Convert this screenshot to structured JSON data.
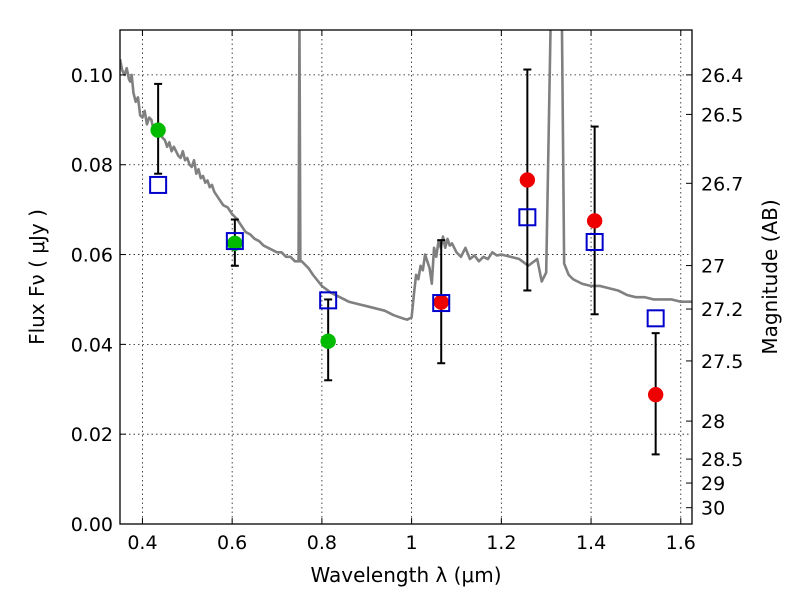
{
  "chart_data": {
    "type": "scatter",
    "title": "",
    "xlabel": "Wavelength  λ (μm)",
    "ylabel": "Flux  Fν  ( μJy )",
    "y2label": "Magnitude (AB)",
    "xlim": [
      0.35,
      1.625
    ],
    "ylim": [
      0.0,
      0.11
    ],
    "grid": true,
    "x_ticks": [
      0.4,
      0.6,
      0.8,
      1.0,
      1.2,
      1.4,
      1.6
    ],
    "x_tick_labels": [
      "0.4",
      "0.6",
      "0.8",
      "1",
      "1.2",
      "1.4",
      "1.6"
    ],
    "y_ticks": [
      0.0,
      0.02,
      0.04,
      0.06,
      0.08,
      0.1
    ],
    "y_tick_labels": [
      "0.00",
      "0.02",
      "0.04",
      "0.06",
      "0.08",
      "0.10"
    ],
    "y2_ticks": [
      {
        "label": "26.4",
        "mag": 26.4
      },
      {
        "label": "26.5",
        "mag": 26.5
      },
      {
        "label": "26.7",
        "mag": 26.7
      },
      {
        "label": "27",
        "mag": 27.0
      },
      {
        "label": "27.2",
        "mag": 27.2
      },
      {
        "label": "27.5",
        "mag": 27.5
      },
      {
        "label": "28",
        "mag": 28.0
      },
      {
        "label": "28.5",
        "mag": 28.5
      },
      {
        "label": "29",
        "mag": 29.0
      },
      {
        "label": "30",
        "mag": 30.0
      }
    ],
    "model_spectrum": {
      "color": "#808080",
      "x": [
        0.35,
        0.355,
        0.36,
        0.365,
        0.37,
        0.373,
        0.376,
        0.38,
        0.385,
        0.39,
        0.395,
        0.4,
        0.405,
        0.41,
        0.415,
        0.42,
        0.425,
        0.43,
        0.435,
        0.44,
        0.445,
        0.45,
        0.455,
        0.46,
        0.465,
        0.47,
        0.475,
        0.48,
        0.485,
        0.49,
        0.495,
        0.5,
        0.505,
        0.51,
        0.515,
        0.52,
        0.525,
        0.53,
        0.535,
        0.54,
        0.545,
        0.55,
        0.555,
        0.56,
        0.57,
        0.58,
        0.59,
        0.6,
        0.61,
        0.62,
        0.63,
        0.64,
        0.65,
        0.66,
        0.665,
        0.67,
        0.68,
        0.69,
        0.7,
        0.71,
        0.72,
        0.73,
        0.74,
        0.745,
        0.748,
        0.75,
        0.752,
        0.755,
        0.76,
        0.77,
        0.78,
        0.8,
        0.82,
        0.84,
        0.86,
        0.88,
        0.9,
        0.92,
        0.94,
        0.96,
        0.98,
        0.99,
        1.0,
        1.005,
        1.01,
        1.015,
        1.02,
        1.025,
        1.03,
        1.035,
        1.04,
        1.045,
        1.05,
        1.055,
        1.06,
        1.065,
        1.07,
        1.075,
        1.08,
        1.085,
        1.09,
        1.1,
        1.11,
        1.12,
        1.13,
        1.14,
        1.15,
        1.16,
        1.17,
        1.18,
        1.19,
        1.2,
        1.22,
        1.24,
        1.26,
        1.28,
        1.29,
        1.3,
        1.31,
        1.315,
        1.32,
        1.325,
        1.33,
        1.335,
        1.34,
        1.35,
        1.36,
        1.38,
        1.4,
        1.42,
        1.44,
        1.46,
        1.48,
        1.5,
        1.52,
        1.54,
        1.56,
        1.58,
        1.6,
        1.625
      ],
      "y": [
        0.1035,
        0.101,
        0.1,
        0.1015,
        0.099,
        0.0985,
        0.1,
        0.096,
        0.094,
        0.095,
        0.091,
        0.0905,
        0.092,
        0.089,
        0.0905,
        0.09,
        0.0875,
        0.089,
        0.086,
        0.087,
        0.086,
        0.0855,
        0.084,
        0.085,
        0.083,
        0.084,
        0.083,
        0.082,
        0.0815,
        0.083,
        0.081,
        0.0815,
        0.08,
        0.0795,
        0.081,
        0.078,
        0.079,
        0.077,
        0.0775,
        0.076,
        0.0765,
        0.075,
        0.0755,
        0.074,
        0.0725,
        0.071,
        0.0705,
        0.069,
        0.068,
        0.0665,
        0.065,
        0.0645,
        0.0635,
        0.063,
        0.0625,
        0.062,
        0.0615,
        0.061,
        0.0605,
        0.0605,
        0.0595,
        0.0595,
        0.0585,
        0.0585,
        0.0585,
        0.112,
        0.0585,
        0.0585,
        0.058,
        0.057,
        0.0555,
        0.053,
        0.0515,
        0.0505,
        0.0495,
        0.049,
        0.0485,
        0.048,
        0.0475,
        0.0465,
        0.0458,
        0.0455,
        0.046,
        0.051,
        0.0555,
        0.0545,
        0.0575,
        0.0565,
        0.06,
        0.0585,
        0.057,
        0.0535,
        0.0615,
        0.0595,
        0.063,
        0.0615,
        0.064,
        0.0615,
        0.0635,
        0.062,
        0.0625,
        0.0605,
        0.0595,
        0.0615,
        0.059,
        0.0598,
        0.0585,
        0.0595,
        0.059,
        0.0605,
        0.0598,
        0.06,
        0.0595,
        0.059,
        0.0575,
        0.059,
        0.054,
        0.056,
        0.112,
        0.112,
        0.112,
        0.112,
        0.112,
        0.112,
        0.058,
        0.0555,
        0.0545,
        0.0535,
        0.053,
        0.053,
        0.0525,
        0.052,
        0.051,
        0.0505,
        0.0505,
        0.05,
        0.05,
        0.05,
        0.0495,
        0.0495
      ]
    },
    "series": [
      {
        "marker": "filled-circle",
        "color": "#00bb00",
        "points": [
          {
            "x": 0.435,
            "y": 0.0877,
            "err_low": 0.078,
            "err_high": 0.098
          },
          {
            "x": 0.606,
            "y": 0.0625,
            "err_low": 0.0575,
            "err_high": 0.0678
          },
          {
            "x": 0.814,
            "y": 0.0407,
            "err_low": 0.032,
            "err_high": 0.05
          }
        ]
      },
      {
        "marker": "filled-circle",
        "color": "#ee0000",
        "points": [
          {
            "x": 1.066,
            "y": 0.0494,
            "err_low": 0.0358,
            "err_high": 0.0632
          },
          {
            "x": 1.258,
            "y": 0.0766,
            "err_low": 0.052,
            "err_high": 0.1012
          },
          {
            "x": 1.408,
            "y": 0.0675,
            "err_low": 0.0467,
            "err_high": 0.0885
          },
          {
            "x": 1.544,
            "y": 0.0288,
            "err_low": 0.0155,
            "err_high": 0.0425
          }
        ]
      },
      {
        "marker": "open-square",
        "color": "#0000cc",
        "points": [
          {
            "x": 0.435,
            "y": 0.0755
          },
          {
            "x": 0.606,
            "y": 0.063
          },
          {
            "x": 0.814,
            "y": 0.0498
          },
          {
            "x": 1.066,
            "y": 0.0492
          },
          {
            "x": 1.258,
            "y": 0.0683
          },
          {
            "x": 1.408,
            "y": 0.0628
          },
          {
            "x": 1.544,
            "y": 0.0458
          }
        ]
      }
    ]
  }
}
